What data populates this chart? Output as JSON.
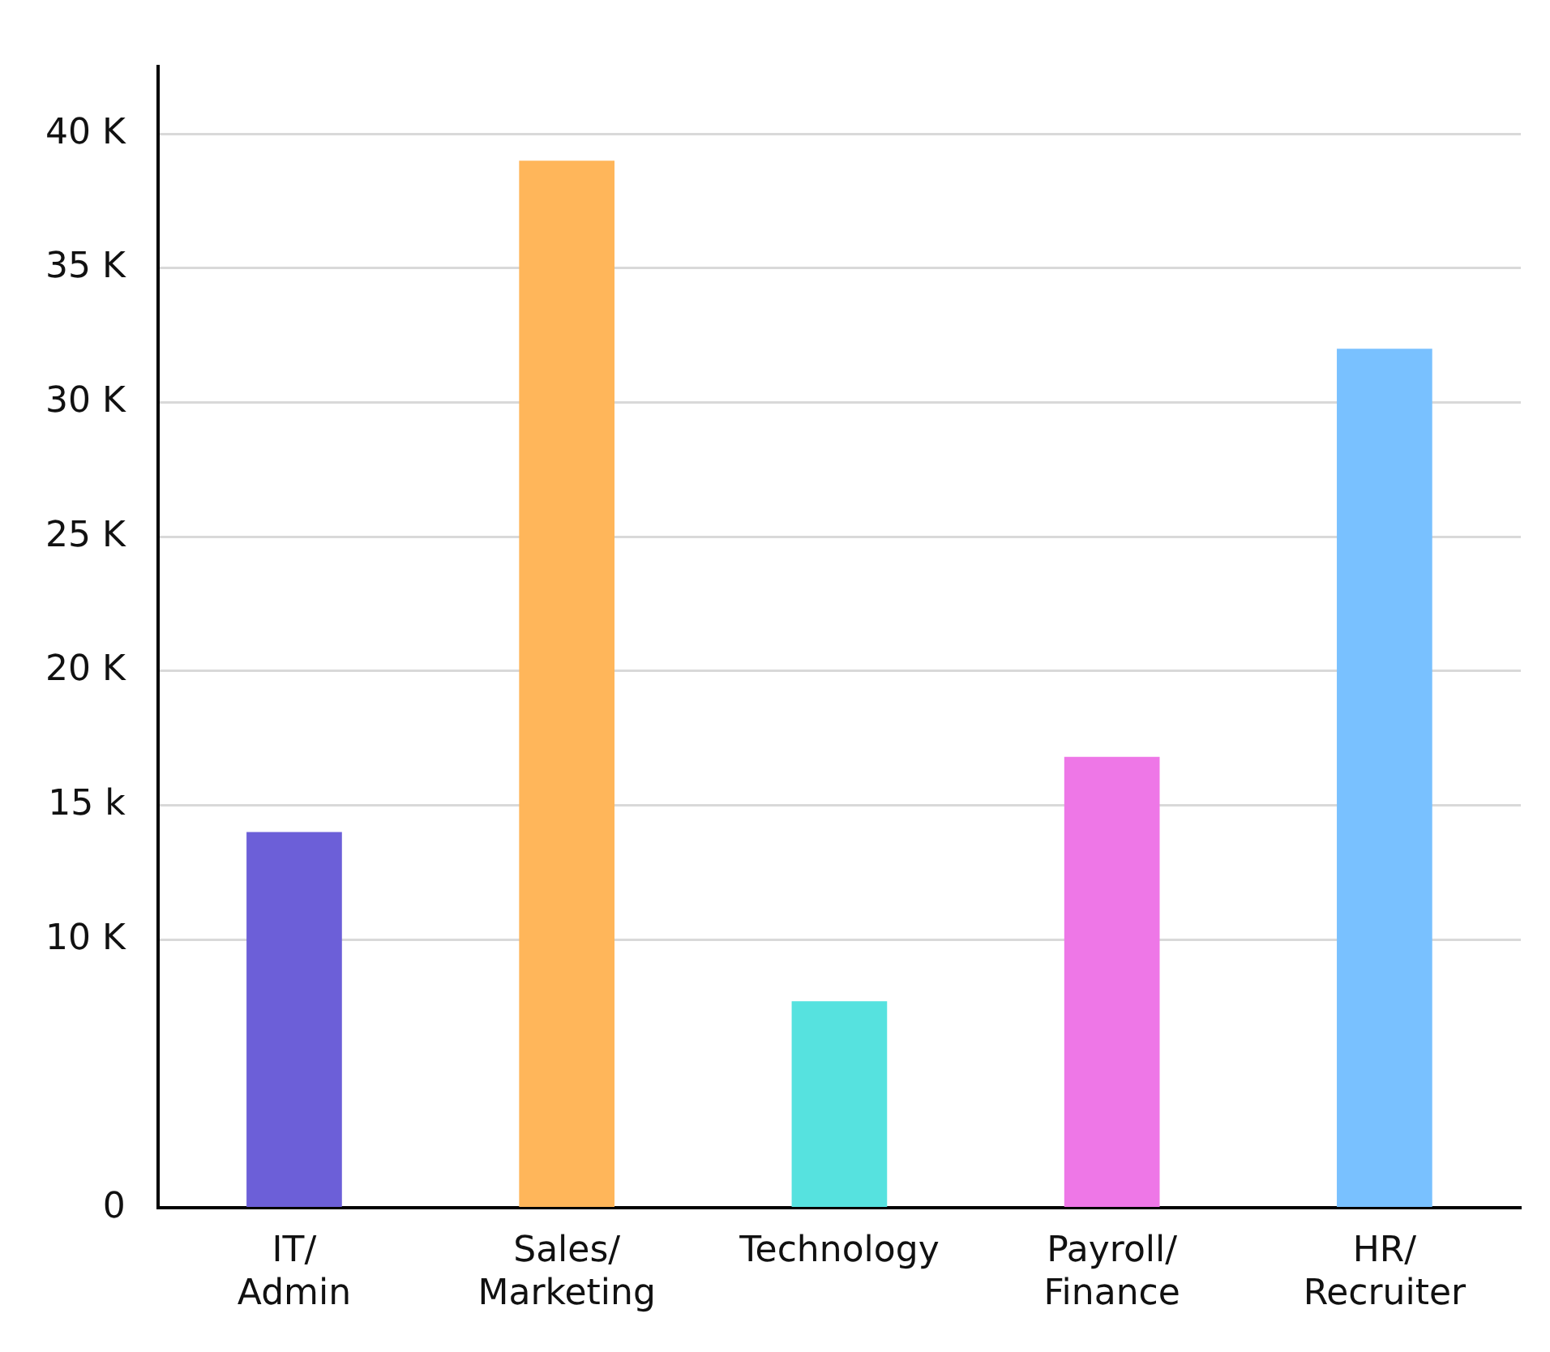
{
  "chart_data": {
    "type": "bar",
    "categories": [
      "IT/\nAdmin",
      "Sales/\nMarketing",
      "Technology",
      "Payroll/\nFinance",
      "HR/\nRecruiter"
    ],
    "values": [
      14000,
      39000,
      7700,
      16800,
      32000
    ],
    "colors": [
      "#6c5fd8",
      "#ffb65a",
      "#56e2df",
      "#ee77e7",
      "#79c1ff"
    ],
    "ylim": [
      0,
      42500
    ],
    "yticks": [
      0,
      {
        "value": 10000,
        "label": "10 K"
      },
      {
        "value": 15000,
        "label": "15 k"
      },
      {
        "value": 20000,
        "label": "20 K"
      },
      {
        "value": 25000,
        "label": "25 K"
      },
      {
        "value": 30000,
        "label": "30 K"
      },
      {
        "value": 35000,
        "label": "35 K"
      },
      {
        "value": 40000,
        "label": "40 K"
      }
    ],
    "grid": "y",
    "legend": false
  }
}
